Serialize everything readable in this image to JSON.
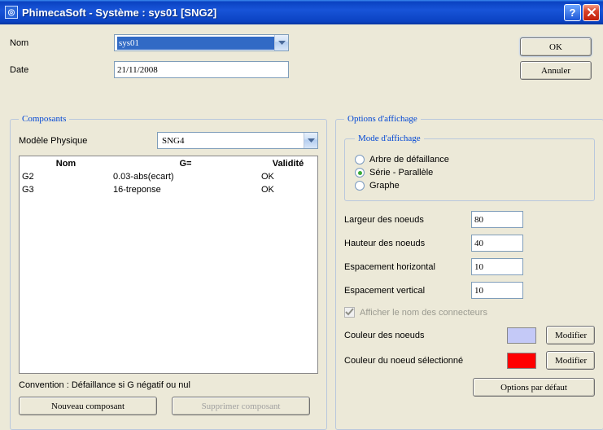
{
  "window": {
    "title": "PhimecaSoft - Système : sys01 [SNG2]",
    "app_icon_glyph": "◎"
  },
  "buttons": {
    "ok": "OK",
    "cancel": "Annuler",
    "new_component": "Nouveau composant",
    "delete_component": "Supprimer composant",
    "modify": "Modifier",
    "defaults": "Options par défaut"
  },
  "form": {
    "name_label": "Nom",
    "name_value": "sys01",
    "date_label": "Date",
    "date_value": "21/11/2008"
  },
  "composants": {
    "legend": "Composants",
    "model_label": "Modèle Physique",
    "model_value": "SNG4",
    "col_nom": "Nom",
    "col_g": "G=",
    "col_valid": "Validité",
    "rows": [
      {
        "nom": "G2",
        "g": "0.03-abs(ecart)",
        "valid": "OK"
      },
      {
        "nom": "G3",
        "g": "16-treponse",
        "valid": "OK"
      }
    ],
    "convention": "Convention : Défaillance si G négatif ou nul"
  },
  "options": {
    "legend": "Options d'affichage",
    "mode_legend": "Mode d'affichage",
    "mode_tree": "Arbre de défaillance",
    "mode_sp": "Série - Parallèle",
    "mode_graph": "Graphe",
    "mode_selected": "sp",
    "node_width_label": "Largeur des noeuds",
    "node_width": "80",
    "node_height_label": "Hauteur des noeuds",
    "node_height": "40",
    "hspace_label": "Espacement horizontal",
    "hspace": "10",
    "vspace_label": "Espacement vertical",
    "vspace": "10",
    "show_conn_label": "Afficher le nom des connecteurs",
    "show_conn_checked": true,
    "show_conn_disabled": true,
    "node_color_label": "Couleur des noeuds",
    "node_color": "#c4c9f7",
    "sel_color_label": "Couleur du noeud sélectionné",
    "sel_color": "#ff0000"
  },
  "colors": {
    "titlebar_text": "#ffffff",
    "legend_text": "#0046d5",
    "panel_bg": "#ece9d8",
    "input_border": "#7f9db9"
  }
}
